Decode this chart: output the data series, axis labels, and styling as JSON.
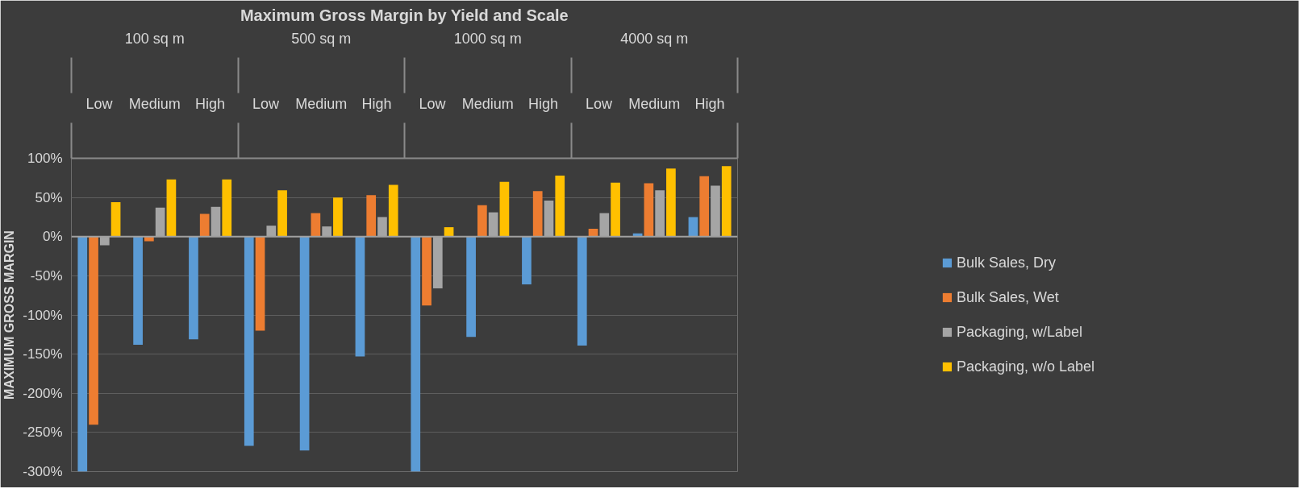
{
  "chart_data": {
    "type": "bar",
    "title": "Maximum Gross Margin by Yield and Scale",
    "ylabel": "MAXIMUM GROSS MARGIN",
    "categories": [
      "Low",
      "Medium",
      "High",
      "Low",
      "Medium",
      "High",
      "Low",
      "Medium",
      "High",
      "Low",
      "Medium",
      "High"
    ],
    "annotations": [
      "100 sq m",
      "500 sq m",
      "1000 sq m",
      "4000 sq m"
    ],
    "series": [
      {
        "name": "Bulk Sales, Dry",
        "color": "#5b9bd5",
        "values": [
          -300,
          -138,
          -131,
          -267,
          -273,
          -153,
          -300,
          -128,
          -61,
          -139,
          4,
          25
        ]
      },
      {
        "name": "Bulk Sales, Wet",
        "color": "#ed7d31",
        "values": [
          -240,
          -6,
          29,
          -120,
          30,
          53,
          -88,
          40,
          58,
          10,
          68,
          77
        ]
      },
      {
        "name": "Packaging, w/Label",
        "color": "#a5a5a5",
        "values": [
          -11,
          37,
          38,
          14,
          13,
          25,
          -66,
          31,
          46,
          30,
          59,
          65
        ]
      },
      {
        "name": "Packaging, w/o Label",
        "color": "#ffc000",
        "values": [
          44,
          73,
          73,
          59,
          50,
          66,
          12,
          70,
          78,
          69,
          87,
          90
        ]
      }
    ],
    "ylim": [
      -300,
      100
    ],
    "yticks": [
      {
        "value": -300,
        "label": "-300%"
      },
      {
        "value": -250,
        "label": "-250%"
      },
      {
        "value": -200,
        "label": "-200%"
      },
      {
        "value": -150,
        "label": "-150%"
      },
      {
        "value": -100,
        "label": "-100%"
      },
      {
        "value": -50,
        "label": "-50%"
      },
      {
        "value": 0,
        "label": "0%"
      },
      {
        "value": 50,
        "label": "50%"
      },
      {
        "value": 100,
        "label": "100%"
      }
    ],
    "grid": "y",
    "legend": "right"
  }
}
